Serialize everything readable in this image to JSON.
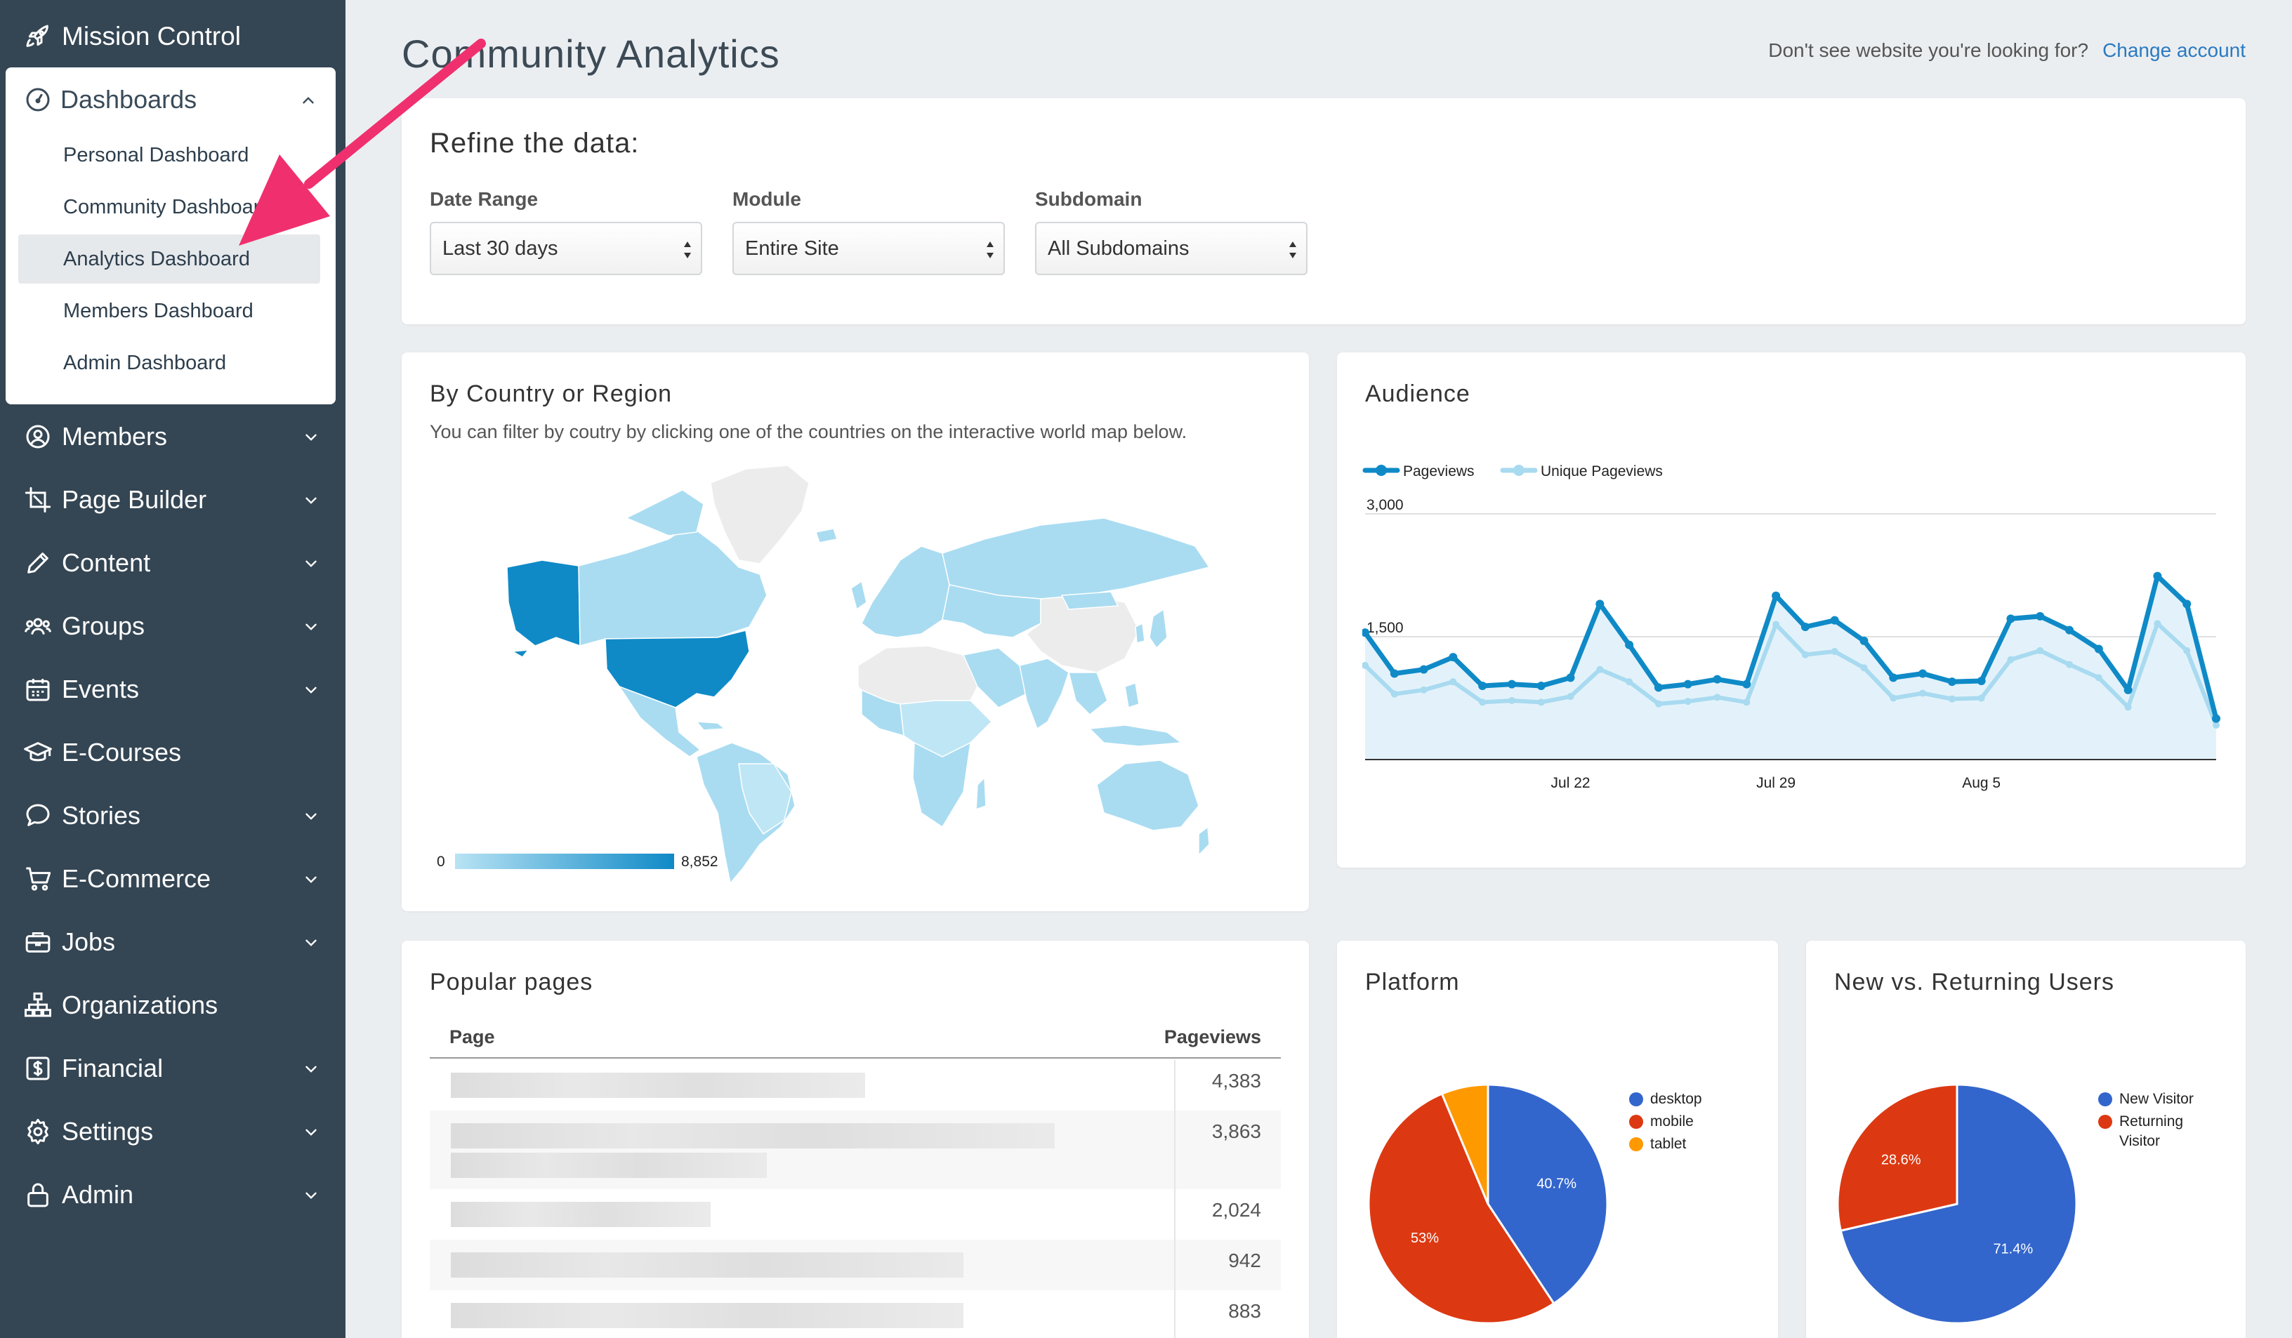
{
  "sidebar": {
    "brand": "Mission Control",
    "dashboards": {
      "label": "Dashboards",
      "items": [
        {
          "label": "Personal Dashboard"
        },
        {
          "label": "Community Dashboard"
        },
        {
          "label": "Analytics Dashboard"
        },
        {
          "label": "Members Dashboard"
        },
        {
          "label": "Admin Dashboard"
        }
      ],
      "active": "Analytics Dashboard"
    },
    "nav": [
      {
        "label": "Members",
        "icon": "user-circle-icon"
      },
      {
        "label": "Page Builder",
        "icon": "crop-icon"
      },
      {
        "label": "Content",
        "icon": "pencil-icon"
      },
      {
        "label": "Groups",
        "icon": "users-icon"
      },
      {
        "label": "Events",
        "icon": "calendar-icon"
      },
      {
        "label": "E-Courses",
        "icon": "graduation-cap-icon"
      },
      {
        "label": "Stories",
        "icon": "speech-bubble-icon"
      },
      {
        "label": "E-Commerce",
        "icon": "cart-icon"
      },
      {
        "label": "Jobs",
        "icon": "briefcase-icon"
      },
      {
        "label": "Organizations",
        "icon": "org-chart-icon"
      },
      {
        "label": "Financial",
        "icon": "dollar-icon"
      },
      {
        "label": "Settings",
        "icon": "gear-icon"
      },
      {
        "label": "Admin",
        "icon": "lock-icon"
      }
    ]
  },
  "header": {
    "title": "Community Analytics",
    "account_prompt": "Don't see website you're looking for?",
    "change_account": "Change account"
  },
  "refine": {
    "title": "Refine the data:",
    "filters": [
      {
        "label": "Date Range",
        "value": "Last 30 days"
      },
      {
        "label": "Module",
        "value": "Entire Site"
      },
      {
        "label": "Subdomain",
        "value": "All Subdomains"
      }
    ]
  },
  "country": {
    "title": "By Country or Region",
    "subtitle": "You can filter by coutry by clicking one of the countries on the interactive world map below.",
    "legend_min": "0",
    "legend_max": "8,852"
  },
  "audience": {
    "title": "Audience"
  },
  "popular": {
    "title": "Popular pages",
    "col_page": "Page",
    "col_views": "Pageviews",
    "rows": [
      {
        "views": "4,383"
      },
      {
        "views": "3,863"
      },
      {
        "views": "2,024"
      },
      {
        "views": "942"
      },
      {
        "views": "883"
      }
    ]
  },
  "platform": {
    "title": "Platform"
  },
  "newret": {
    "title": "New vs. Returning Users"
  },
  "colors": {
    "sidebar_bg": "#344553",
    "pageviews": "#0f8ac7",
    "unique": "#a8daf0",
    "pie_blue": "#3366cc",
    "pie_red": "#dc3912",
    "pie_orange": "#ff9900",
    "annotation_arrow": "#f0306e"
  },
  "chart_data": [
    {
      "type": "line",
      "legend": [
        "Pageviews",
        "Unique Pageviews"
      ],
      "y_ticks": [
        "3,000",
        "1,500"
      ],
      "ylim": [
        0,
        3000
      ],
      "x_ticks": [
        "Jul 22",
        "Jul 29",
        "Aug 5"
      ],
      "x_tick_index": [
        7,
        14,
        21
      ],
      "series": [
        {
          "name": "Pageviews",
          "values": [
            1550,
            1050,
            1100,
            1250,
            900,
            920,
            900,
            1000,
            1900,
            1400,
            880,
            920,
            980,
            920,
            2000,
            1620,
            1700,
            1450,
            1000,
            1050,
            950,
            960,
            1720,
            1750,
            1580,
            1350,
            850,
            2240,
            1900,
            500
          ]
        },
        {
          "name": "Unique Pageviews",
          "values": [
            1150,
            800,
            850,
            950,
            700,
            720,
            700,
            770,
            1100,
            950,
            680,
            710,
            760,
            700,
            1650,
            1280,
            1320,
            1120,
            750,
            810,
            740,
            750,
            1220,
            1330,
            1160,
            1000,
            640,
            1660,
            1330,
            420
          ]
        }
      ]
    },
    {
      "type": "pie",
      "title": "Platform",
      "categories": [
        "desktop",
        "mobile",
        "tablet"
      ],
      "values": [
        40.7,
        53.0,
        6.3
      ],
      "labels": [
        "40.7%",
        "53%",
        ""
      ],
      "colors": [
        "#3366cc",
        "#dc3912",
        "#ff9900"
      ]
    },
    {
      "type": "pie",
      "title": "New vs. Returning Users",
      "categories": [
        "New Visitor",
        "Returning Visitor"
      ],
      "values": [
        71.4,
        28.6
      ],
      "labels": [
        "71.4%",
        "28.6%"
      ],
      "colors": [
        "#3366cc",
        "#dc3912"
      ]
    }
  ]
}
